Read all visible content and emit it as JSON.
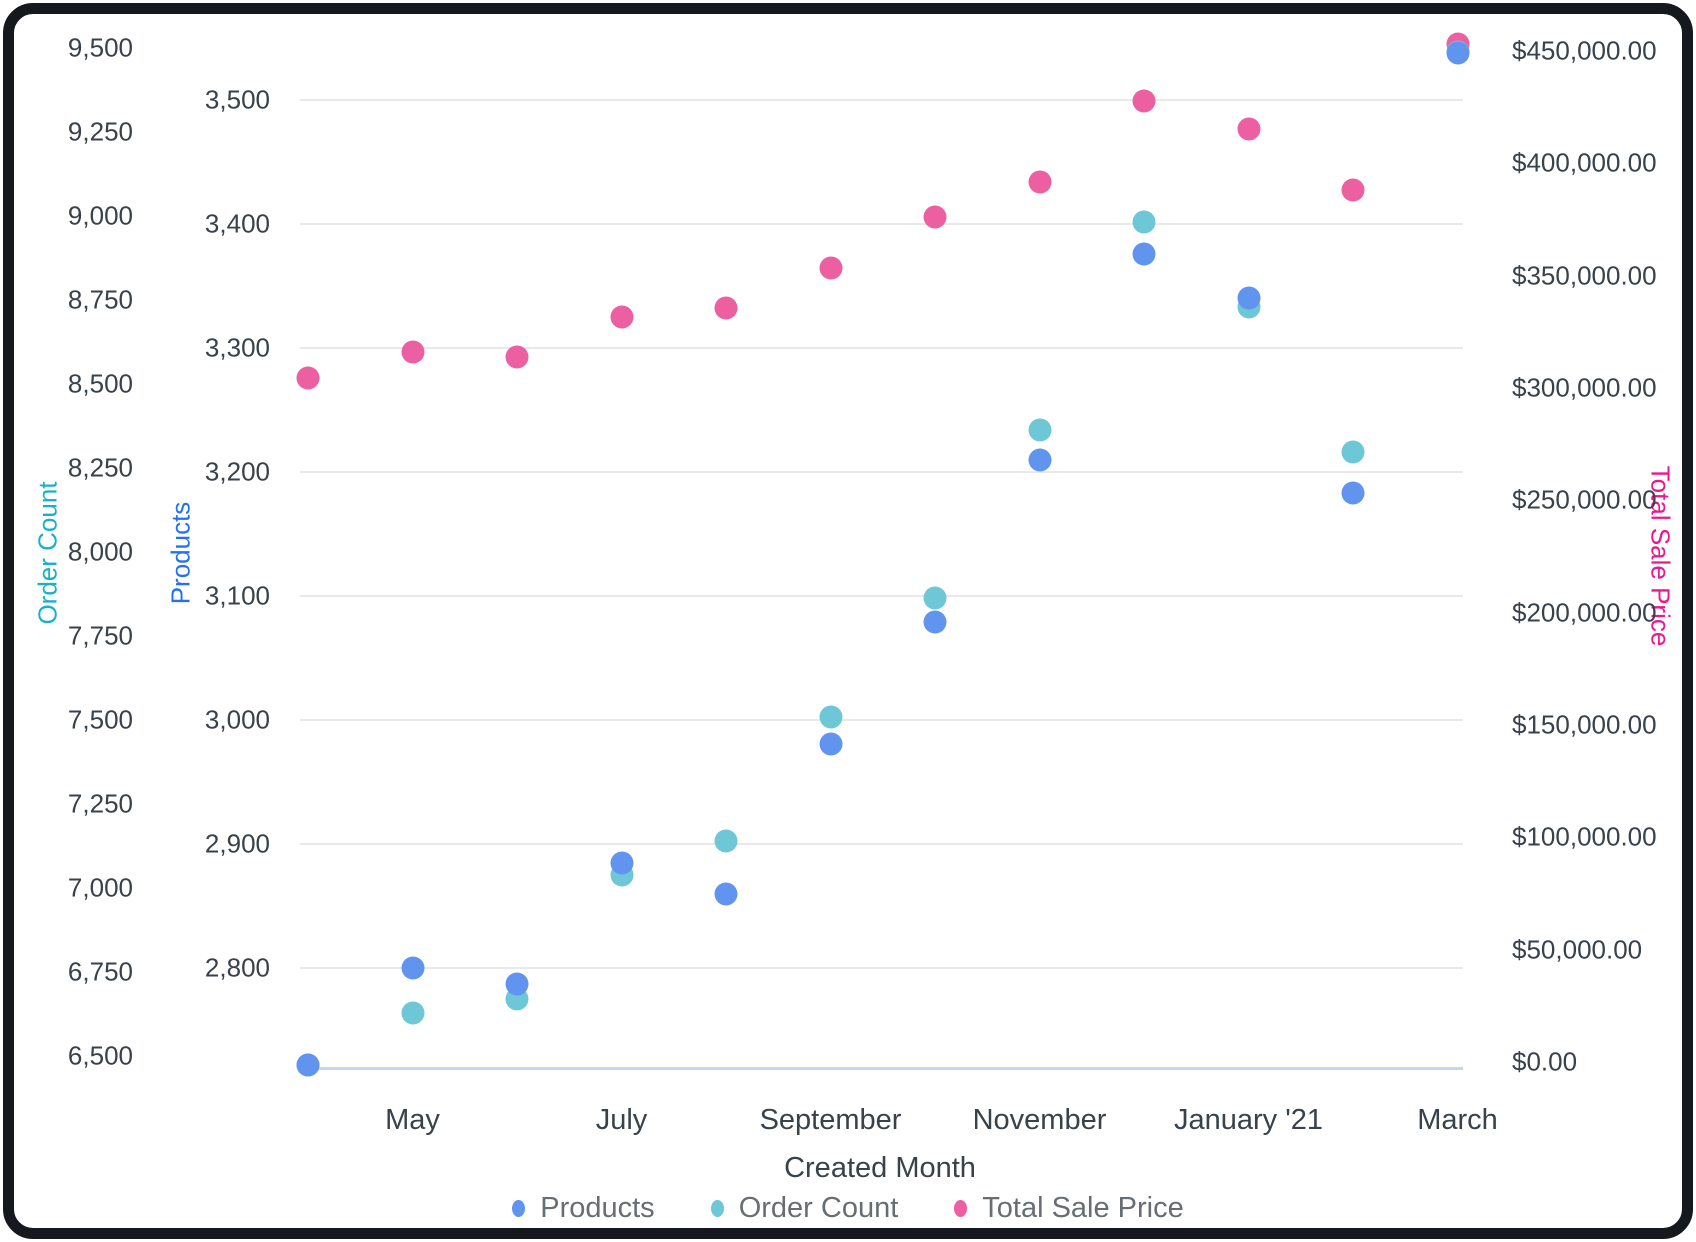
{
  "chart_data": {
    "type": "scatter",
    "x_title": "Created Month",
    "months": [
      "April",
      "May",
      "June",
      "July",
      "August",
      "September",
      "October",
      "November",
      "December",
      "January '21",
      "February",
      "March"
    ],
    "x_tick_labels": [
      "May",
      "July",
      "September",
      "November",
      "January '21",
      "March"
    ],
    "x_tick_month_indexes": [
      1,
      3,
      5,
      7,
      9,
      11
    ],
    "axes": {
      "order_count": {
        "title": "Order Count",
        "title_color": "#18b2c8",
        "min": 6500,
        "max": 9500,
        "tick_values": [
          9500,
          9250,
          9000,
          8750,
          8500,
          8250,
          8000,
          7750,
          7500,
          7250,
          7000,
          6750,
          6500
        ],
        "tick_labels": [
          "9,500",
          "9,250",
          "9,000",
          "8,750",
          "8,500",
          "8,250",
          "8,000",
          "7,750",
          "7,500",
          "7,250",
          "7,000",
          "6,750",
          "6,500"
        ]
      },
      "products": {
        "title": "Products",
        "title_color": "#2272f3",
        "min": 2800,
        "max": 3500,
        "tick_values": [
          3500,
          3400,
          3300,
          3200,
          3100,
          3000,
          2900,
          2800
        ],
        "tick_labels": [
          "3,500",
          "3,400",
          "3,300",
          "3,200",
          "3,100",
          "3,000",
          "2,900",
          "2,800"
        ]
      },
      "sale": {
        "title": "Total Sale Price",
        "title_color": "#ea1790",
        "min": 0,
        "max": 450000,
        "tick_values": [
          450000,
          400000,
          350000,
          300000,
          250000,
          200000,
          150000,
          100000,
          50000,
          0
        ],
        "tick_labels": [
          "$450,000.00",
          "$400,000.00",
          "$350,000.00",
          "$300,000.00",
          "$250,000.00",
          "$200,000.00",
          "$150,000.00",
          "$100,000.00",
          "$50,000.00",
          "$0.00"
        ]
      }
    },
    "series": [
      {
        "name": "Products",
        "axis": "products",
        "color": "#6094ee",
        "values": [
          2722,
          2800,
          2787,
          2885,
          2860,
          2981,
          3079,
          3210,
          3376,
          3340,
          3183,
          3538
        ]
      },
      {
        "name": "Order Count",
        "axis": "order_count",
        "color": "#6ec7d7",
        "values": [
          6473,
          6628,
          6670,
          7039,
          7140,
          7509,
          7863,
          8363,
          8982,
          8729,
          8298,
          9488
        ]
      },
      {
        "name": "Total Sale Price",
        "axis": "sale",
        "color": "#ec5fa1",
        "values": [
          304500,
          316100,
          313900,
          331700,
          335700,
          353500,
          376200,
          391800,
          427800,
          415400,
          388200,
          453200
        ]
      }
    ],
    "legend_position": "bottom",
    "grid": "horizontal-on-products-axis"
  }
}
